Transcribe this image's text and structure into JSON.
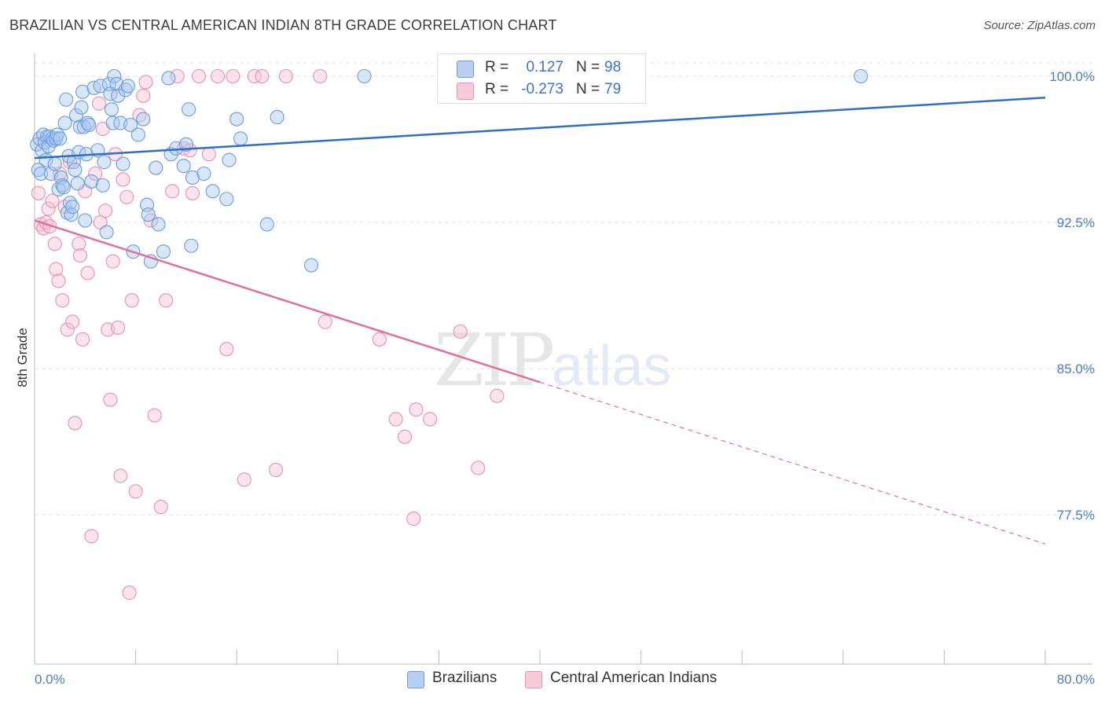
{
  "header": {
    "title": "BRAZILIAN VS CENTRAL AMERICAN INDIAN 8TH GRADE CORRELATION CHART",
    "source": "Source: ZipAtlas.com"
  },
  "legend": {
    "series1": {
      "r_label": "R =",
      "r_value": "0.127",
      "n_label": "N =",
      "n_value": "98"
    },
    "series2": {
      "r_label": "R =",
      "r_value": "-0.273",
      "n_label": "N =",
      "n_value": "79"
    }
  },
  "bottom_legend": {
    "series1": "Brazilians",
    "series2": "Central American Indians"
  },
  "watermark": {
    "zip": "ZIP",
    "atlas": "atlas"
  },
  "colors": {
    "blue": "#6a9be0",
    "blue_fill": "#aac8f0",
    "blue_line": "#2f6ec8",
    "pink": "#e890ad",
    "pink_fill": "#f6c4d5",
    "pink_line": "#e0709a"
  },
  "chart_data": {
    "type": "scatter",
    "title": "BRAZILIAN VS CENTRAL AMERICAN INDIAN 8TH GRADE CORRELATION CHART",
    "xlabel": "",
    "ylabel": "8th Grade",
    "xlim": [
      0,
      80
    ],
    "ylim": [
      71,
      101
    ],
    "x_tick_labels": [
      "0.0%",
      "80.0%"
    ],
    "y_ticks": [
      77.5,
      85.0,
      92.5,
      100.0
    ],
    "y_tick_labels": [
      "77.5%",
      "85.0%",
      "92.5%",
      "100.0%"
    ],
    "grid": true,
    "legend_position": "top-center",
    "series": [
      {
        "name": "Brazilians",
        "color": "#6a9be0",
        "trend": {
          "x0": 0,
          "y0": 95.8,
          "x1": 80,
          "y1": 98.9
        },
        "points": [
          [
            0.2,
            96.5
          ],
          [
            0.3,
            95.2
          ],
          [
            0.4,
            96.8
          ],
          [
            0.5,
            95.0
          ],
          [
            0.6,
            96.2
          ],
          [
            0.7,
            97.0
          ],
          [
            0.8,
            96.6
          ],
          [
            0.9,
            95.7
          ],
          [
            1.0,
            96.9
          ],
          [
            1.1,
            96.4
          ],
          [
            1.2,
            96.9
          ],
          [
            1.3,
            95.0
          ],
          [
            1.4,
            96.8
          ],
          [
            1.5,
            96.7
          ],
          [
            1.6,
            95.5
          ],
          [
            1.7,
            96.8
          ],
          [
            1.8,
            97.0
          ],
          [
            1.9,
            94.2
          ],
          [
            2.0,
            96.8
          ],
          [
            2.1,
            94.8
          ],
          [
            2.2,
            94.4
          ],
          [
            2.3,
            94.3
          ],
          [
            2.4,
            97.6
          ],
          [
            2.5,
            98.8
          ],
          [
            2.6,
            93.0
          ],
          [
            2.7,
            95.9
          ],
          [
            2.8,
            93.5
          ],
          [
            2.9,
            92.9
          ],
          [
            3.0,
            93.3
          ],
          [
            3.1,
            95.6
          ],
          [
            3.2,
            95.2
          ],
          [
            3.3,
            98.0
          ],
          [
            3.4,
            94.5
          ],
          [
            3.5,
            96.1
          ],
          [
            3.6,
            97.4
          ],
          [
            3.7,
            98.4
          ],
          [
            3.8,
            99.2
          ],
          [
            3.9,
            97.4
          ],
          [
            4.0,
            92.6
          ],
          [
            4.1,
            96.0
          ],
          [
            4.2,
            97.6
          ],
          [
            4.3,
            97.5
          ],
          [
            4.5,
            94.6
          ],
          [
            4.7,
            99.4
          ],
          [
            5.0,
            96.2
          ],
          [
            5.2,
            99.5
          ],
          [
            5.4,
            94.4
          ],
          [
            5.5,
            95.6
          ],
          [
            5.7,
            92.0
          ],
          [
            5.9,
            99.6
          ],
          [
            6.0,
            99.1
          ],
          [
            6.1,
            98.3
          ],
          [
            6.2,
            97.6
          ],
          [
            6.3,
            100.0
          ],
          [
            6.5,
            99.6
          ],
          [
            6.6,
            99.0
          ],
          [
            6.8,
            97.6
          ],
          [
            7.0,
            95.5
          ],
          [
            7.2,
            99.3
          ],
          [
            7.4,
            99.5
          ],
          [
            7.6,
            97.5
          ],
          [
            7.8,
            91.0
          ],
          [
            8.2,
            97.0
          ],
          [
            8.6,
            97.8
          ],
          [
            8.9,
            93.4
          ],
          [
            9.0,
            92.9
          ],
          [
            9.2,
            90.5
          ],
          [
            9.6,
            95.3
          ],
          [
            9.8,
            92.4
          ],
          [
            10.2,
            91.0
          ],
          [
            10.6,
            99.9
          ],
          [
            10.8,
            96.0
          ],
          [
            11.2,
            96.3
          ],
          [
            11.8,
            95.4
          ],
          [
            12.0,
            96.5
          ],
          [
            12.2,
            98.3
          ],
          [
            12.4,
            91.3
          ],
          [
            12.5,
            94.8
          ],
          [
            13.4,
            95.0
          ],
          [
            14.1,
            94.1
          ],
          [
            15.2,
            93.7
          ],
          [
            15.4,
            95.7
          ],
          [
            16.0,
            97.8
          ],
          [
            16.3,
            96.8
          ],
          [
            18.4,
            92.4
          ],
          [
            19.2,
            97.9
          ],
          [
            21.9,
            90.3
          ],
          [
            26.1,
            100.0
          ],
          [
            65.4,
            100.0
          ]
        ]
      },
      {
        "name": "Central American Indians",
        "color": "#e890ad",
        "trend": {
          "x0": 0,
          "y0": 92.6,
          "x1": 40,
          "y1": 84.3,
          "dash_x1": 80,
          "dash_y1": 76.0
        },
        "points": [
          [
            0.3,
            94.0
          ],
          [
            0.5,
            92.4
          ],
          [
            0.7,
            92.2
          ],
          [
            0.9,
            92.5
          ],
          [
            1.1,
            93.2
          ],
          [
            1.2,
            92.3
          ],
          [
            1.4,
            93.6
          ],
          [
            1.6,
            91.4
          ],
          [
            1.7,
            90.1
          ],
          [
            1.9,
            89.5
          ],
          [
            2.0,
            95.0
          ],
          [
            2.2,
            88.5
          ],
          [
            2.4,
            93.3
          ],
          [
            2.6,
            87.0
          ],
          [
            2.8,
            95.6
          ],
          [
            3.0,
            87.4
          ],
          [
            3.2,
            82.2
          ],
          [
            3.5,
            91.4
          ],
          [
            3.6,
            90.8
          ],
          [
            3.8,
            86.5
          ],
          [
            4.0,
            94.1
          ],
          [
            4.2,
            89.9
          ],
          [
            4.5,
            76.4
          ],
          [
            4.8,
            95.0
          ],
          [
            5.1,
            98.6
          ],
          [
            5.2,
            92.5
          ],
          [
            5.4,
            97.3
          ],
          [
            5.6,
            93.1
          ],
          [
            5.8,
            87.0
          ],
          [
            6.0,
            83.4
          ],
          [
            6.2,
            90.5
          ],
          [
            6.4,
            96.0
          ],
          [
            6.6,
            87.1
          ],
          [
            6.8,
            79.5
          ],
          [
            7.0,
            94.7
          ],
          [
            7.3,
            93.8
          ],
          [
            7.5,
            73.5
          ],
          [
            7.7,
            88.5
          ],
          [
            8.0,
            78.7
          ],
          [
            8.3,
            98.0
          ],
          [
            8.6,
            99.0
          ],
          [
            8.8,
            99.7
          ],
          [
            9.2,
            92.6
          ],
          [
            9.5,
            82.6
          ],
          [
            10.0,
            77.9
          ],
          [
            10.4,
            88.5
          ],
          [
            10.9,
            94.1
          ],
          [
            11.3,
            100.0
          ],
          [
            11.8,
            96.3
          ],
          [
            12.3,
            96.2
          ],
          [
            12.5,
            94.0
          ],
          [
            13.0,
            100.0
          ],
          [
            13.8,
            96.0
          ],
          [
            14.5,
            100.0
          ],
          [
            15.2,
            86.0
          ],
          [
            15.7,
            100.0
          ],
          [
            16.6,
            79.3
          ],
          [
            17.4,
            100.0
          ],
          [
            18.0,
            100.0
          ],
          [
            19.1,
            79.8
          ],
          [
            19.9,
            100.0
          ],
          [
            22.6,
            100.0
          ],
          [
            23.0,
            87.4
          ],
          [
            27.3,
            86.5
          ],
          [
            28.6,
            82.4
          ],
          [
            29.3,
            81.5
          ],
          [
            30.0,
            77.3
          ],
          [
            30.2,
            82.9
          ],
          [
            31.3,
            82.4
          ],
          [
            33.7,
            86.9
          ],
          [
            35.1,
            79.9
          ],
          [
            36.6,
            83.6
          ]
        ]
      }
    ]
  }
}
